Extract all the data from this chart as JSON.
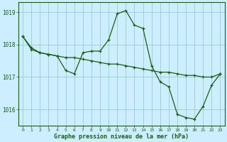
{
  "background_color": "#cceeff",
  "grid_color": "#99cccc",
  "line_color": "#1a5c1a",
  "series1": {
    "x": [
      0,
      1,
      2,
      3,
      4,
      5,
      6,
      7,
      8,
      9,
      10,
      11,
      12,
      13,
      14,
      15,
      16,
      17,
      18,
      19,
      20,
      21,
      22,
      23
    ],
    "y": [
      1018.25,
      1017.9,
      1017.75,
      1017.7,
      1017.65,
      1017.2,
      1017.1,
      1017.75,
      1017.8,
      1017.8,
      1018.15,
      1018.95,
      1019.05,
      1018.6,
      1018.5,
      1017.35,
      1016.85,
      1016.7,
      1015.85,
      1015.75,
      1015.7,
      1016.1,
      1016.75,
      1017.1
    ]
  },
  "series2": {
    "x": [
      0,
      1,
      2,
      3,
      4,
      5,
      6,
      7,
      8,
      9,
      10,
      11,
      12,
      13,
      14,
      15,
      16,
      17,
      18,
      19,
      20,
      21,
      22,
      23
    ],
    "y": [
      1018.25,
      1017.85,
      1017.75,
      1017.7,
      1017.65,
      1017.6,
      1017.6,
      1017.55,
      1017.5,
      1017.45,
      1017.4,
      1017.4,
      1017.35,
      1017.3,
      1017.25,
      1017.2,
      1017.15,
      1017.15,
      1017.1,
      1017.05,
      1017.05,
      1017.0,
      1017.0,
      1017.1
    ]
  },
  "ylim": [
    1015.5,
    1019.3
  ],
  "yticks": [
    1016,
    1017,
    1018,
    1019
  ],
  "xlabel": "Graphe pression niveau de la mer (hPa)",
  "xticks": [
    0,
    1,
    2,
    3,
    4,
    5,
    6,
    7,
    8,
    9,
    10,
    11,
    12,
    13,
    14,
    15,
    16,
    17,
    18,
    19,
    20,
    21,
    22,
    23
  ],
  "xlim": [
    -0.5,
    23.5
  ],
  "figsize": [
    3.2,
    2.0
  ],
  "dpi": 100
}
